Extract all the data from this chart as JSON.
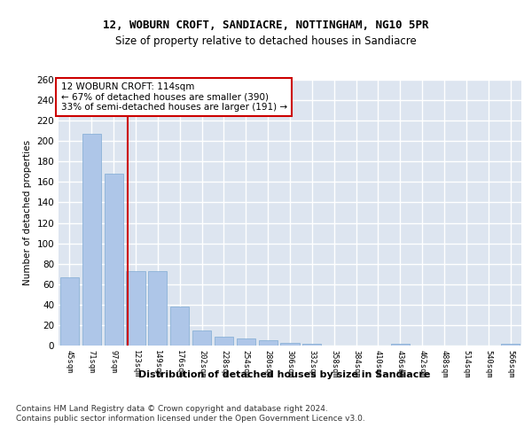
{
  "title1": "12, WOBURN CROFT, SANDIACRE, NOTTINGHAM, NG10 5PR",
  "title2": "Size of property relative to detached houses in Sandiacre",
  "xlabel": "Distribution of detached houses by size in Sandiacre",
  "ylabel": "Number of detached properties",
  "bar_labels": [
    "45sqm",
    "71sqm",
    "97sqm",
    "123sqm",
    "149sqm",
    "176sqm",
    "202sqm",
    "228sqm",
    "254sqm",
    "280sqm",
    "306sqm",
    "332sqm",
    "358sqm",
    "384sqm",
    "410sqm",
    "436sqm",
    "462sqm",
    "488sqm",
    "514sqm",
    "540sqm",
    "566sqm"
  ],
  "bar_values": [
    67,
    207,
    168,
    73,
    73,
    38,
    15,
    9,
    7,
    5,
    3,
    2,
    0,
    0,
    0,
    2,
    0,
    0,
    0,
    0,
    2
  ],
  "bar_color": "#aec6e8",
  "bar_edge_color": "#7faad4",
  "background_color": "#dde5f0",
  "grid_color": "#ffffff",
  "red_line_x": 2.62,
  "annotation_text": "12 WOBURN CROFT: 114sqm\n← 67% of detached houses are smaller (390)\n33% of semi-detached houses are larger (191) →",
  "annotation_box_color": "#ffffff",
  "annotation_box_edge": "#cc0000",
  "footer_text": "Contains HM Land Registry data © Crown copyright and database right 2024.\nContains public sector information licensed under the Open Government Licence v3.0.",
  "ylim": [
    0,
    260
  ],
  "yticks": [
    0,
    20,
    40,
    60,
    80,
    100,
    120,
    140,
    160,
    180,
    200,
    220,
    240,
    260
  ]
}
